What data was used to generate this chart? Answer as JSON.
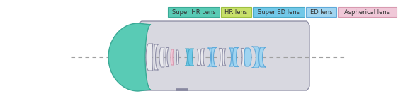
{
  "legend_items": [
    {
      "label": "Super HR Lens",
      "color": "#59cbb5",
      "border": "#3aaa96",
      "text_color": "#333333"
    },
    {
      "label": "HR lens",
      "color": "#c8e06a",
      "border": "#9ec040",
      "text_color": "#333333"
    },
    {
      "label": "Super ED lens",
      "color": "#72c8e8",
      "border": "#4aaac8",
      "text_color": "#333333"
    },
    {
      "label": "ED lens",
      "color": "#a0d4f0",
      "border": "#60aada",
      "text_color": "#333333"
    },
    {
      "label": "Aspherical lens",
      "color": "#f0c8d8",
      "border": "#d89ab0",
      "text_color": "#333333"
    }
  ],
  "housing_color": "#d8d8e0",
  "housing_border": "#8888a0",
  "axis_color": "#a0a0a0",
  "lens_default_color": "#eaeaee",
  "lens_border_color": "#9090a8",
  "fig_w": 5.86,
  "fig_h": 1.36,
  "dpi": 100
}
